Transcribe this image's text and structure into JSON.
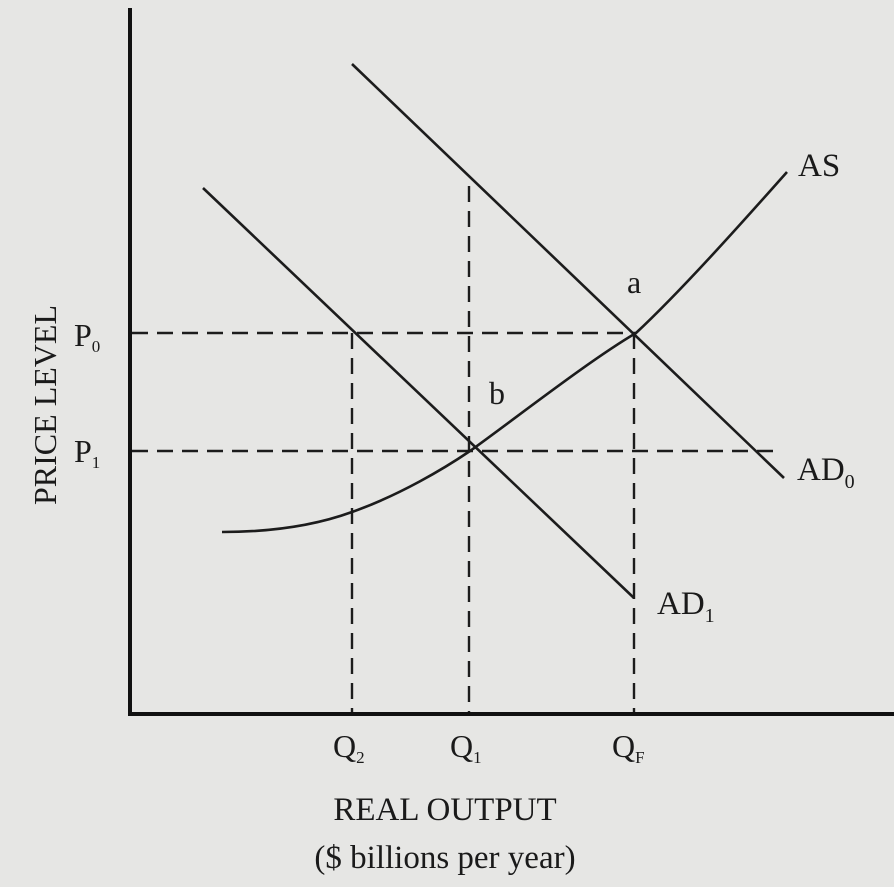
{
  "chart_data": {
    "type": "line",
    "title": "",
    "xlabel": "REAL OUTPUT",
    "xlabel_sub": "($ billions per year)",
    "ylabel": "PRICE LEVEL",
    "curves": [
      {
        "name": "AS",
        "label": "AS"
      },
      {
        "name": "AD0",
        "label": "AD",
        "subscript": "0"
      },
      {
        "name": "AD1",
        "label": "AD",
        "subscript": "1"
      }
    ],
    "points": [
      {
        "name": "a",
        "label": "a"
      },
      {
        "name": "b",
        "label": "b"
      }
    ],
    "x_ticks": [
      {
        "name": "Q2",
        "label": "Q",
        "subscript": "2"
      },
      {
        "name": "Q1",
        "label": "Q",
        "subscript": "1"
      },
      {
        "name": "QF",
        "label": "Q",
        "subscript": "F"
      }
    ],
    "y_ticks": [
      {
        "name": "P0",
        "label": "P",
        "subscript": "0"
      },
      {
        "name": "P1",
        "label": "P",
        "subscript": "1"
      }
    ]
  }
}
